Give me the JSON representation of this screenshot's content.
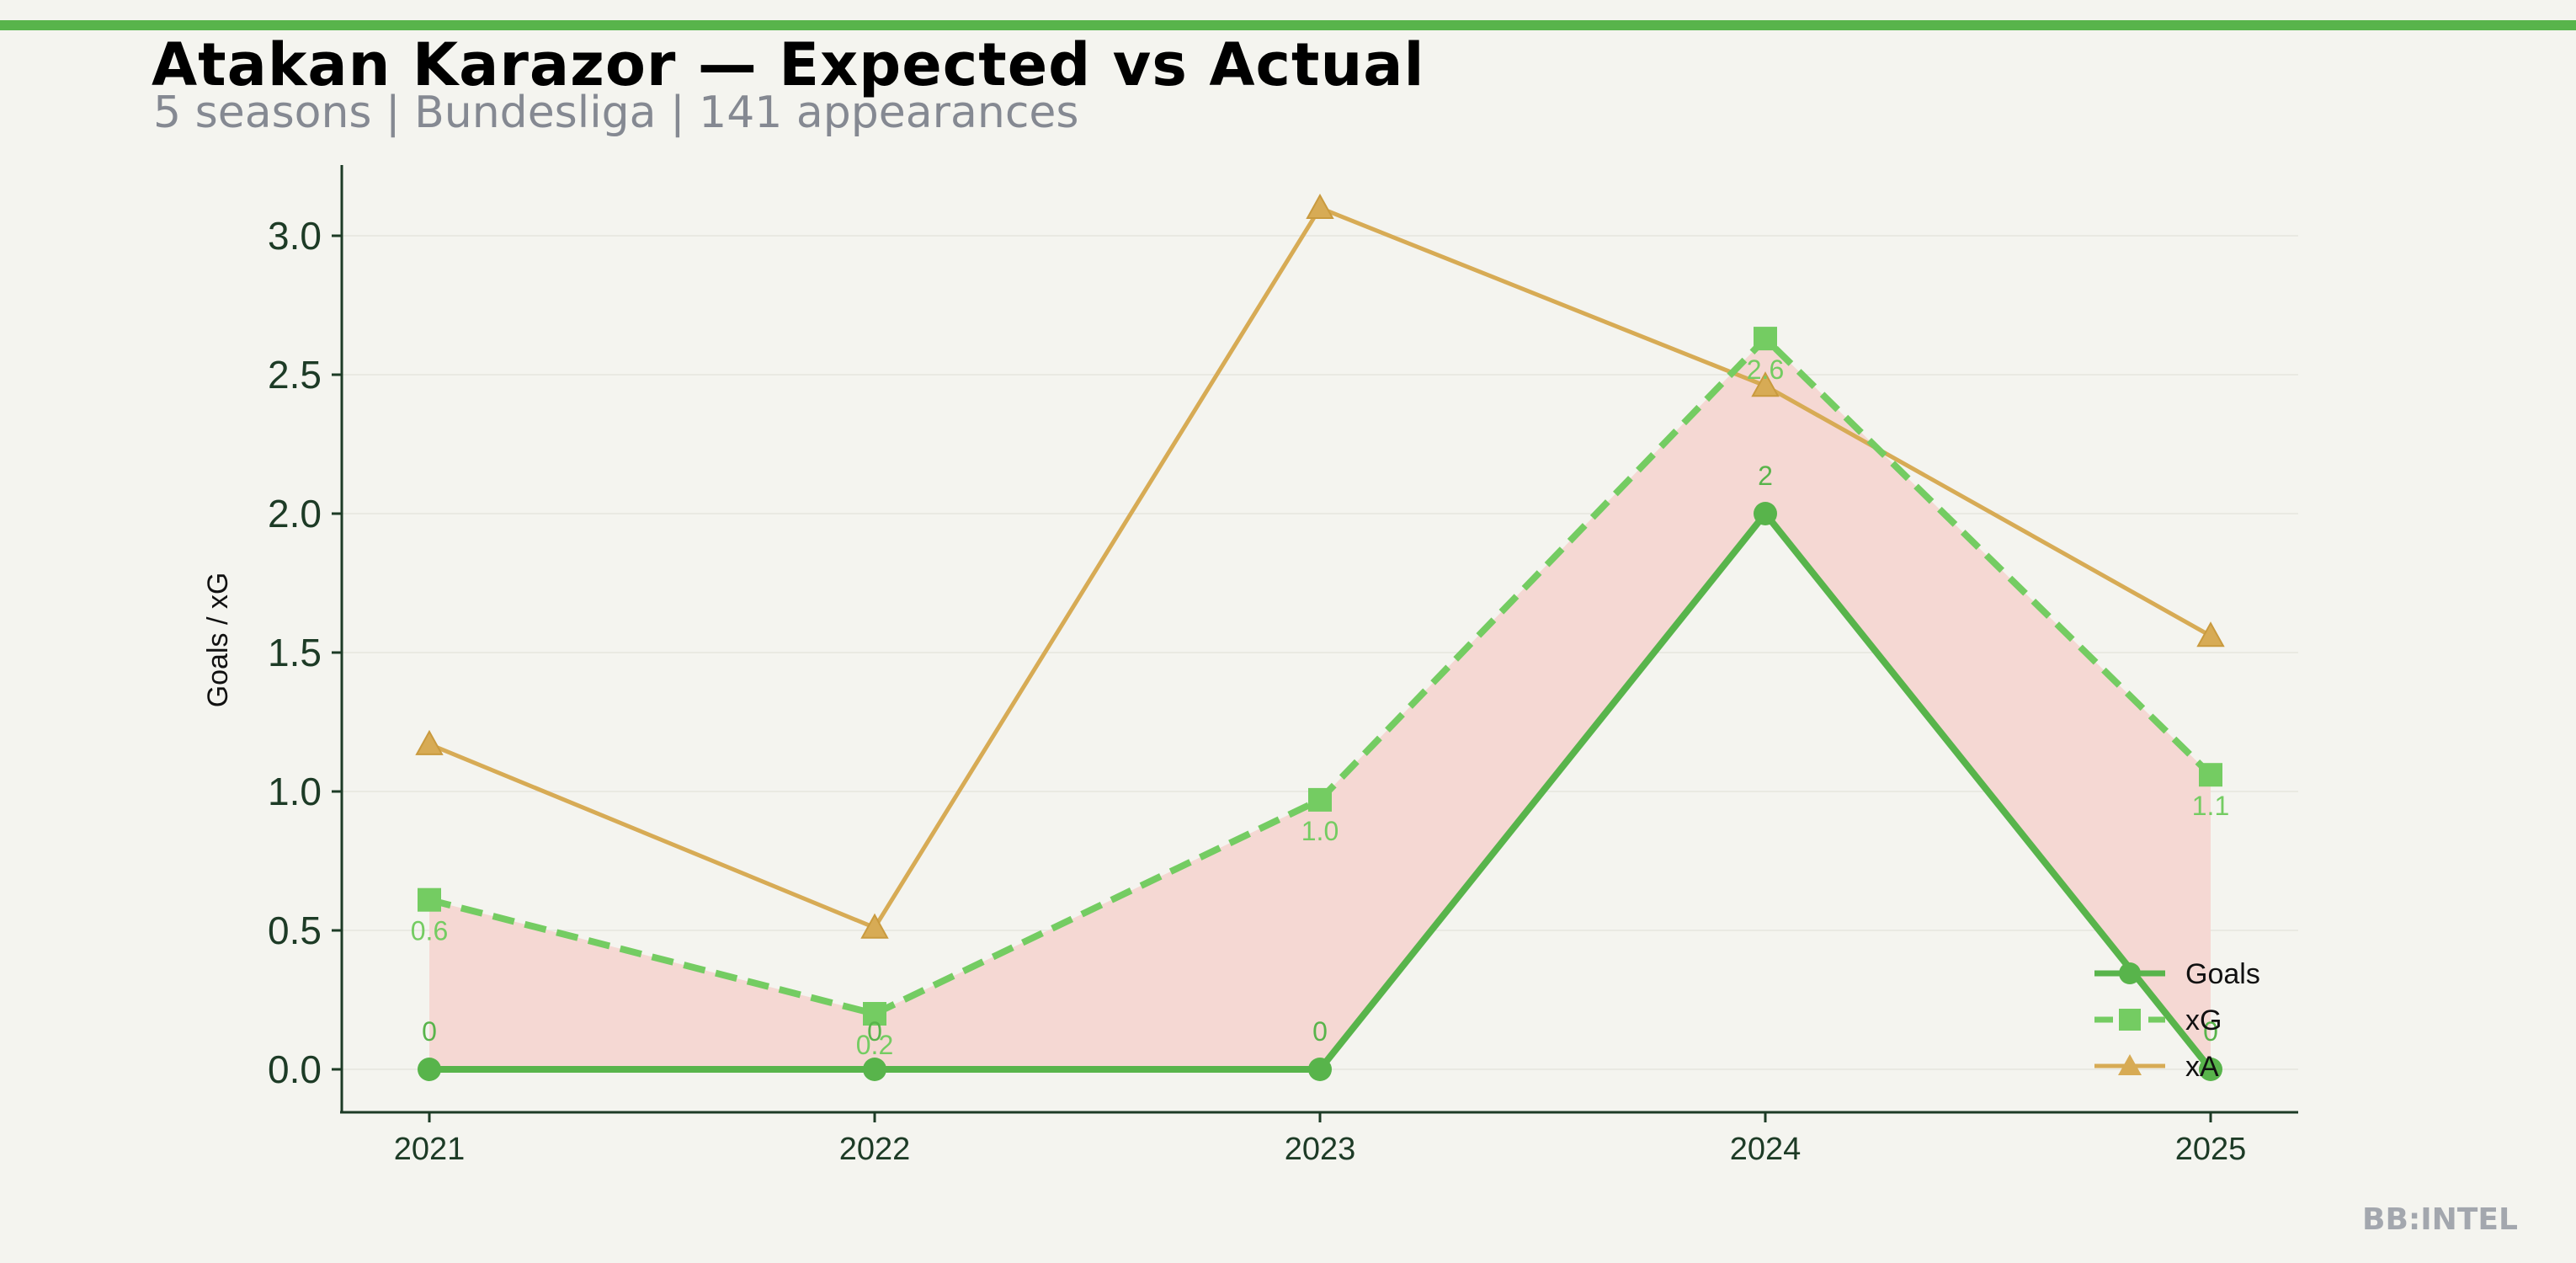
{
  "title": "Atakan Karazor — Expected vs Actual",
  "subtitle": "5 seasons | Bundesliga | 141 appearances",
  "brand": "BB:INTEL",
  "colors": {
    "goals": "#58b44b",
    "xg": "#74cc62",
    "xa": "#d7ab55",
    "fill": "#f5d8d3",
    "axis": "#1d3b26",
    "background": "#f4f4ef"
  },
  "chart_data": {
    "type": "line",
    "ylabel": "Goals / xG",
    "xlabel": "",
    "x": [
      "2021",
      "2022",
      "2023",
      "2024",
      "2025"
    ],
    "ylim": [
      -0.15,
      3.25
    ],
    "yticks": [
      "0.0",
      "0.5",
      "1.0",
      "1.5",
      "2.0",
      "2.5",
      "3.0"
    ],
    "grid": true,
    "legend": "lower-right",
    "series": [
      {
        "name": "Goals",
        "values": [
          0,
          0,
          0,
          2,
          0
        ],
        "labels": [
          "0",
          "0",
          "0",
          "2",
          "0"
        ],
        "marker": "circle-icon",
        "style": "solid"
      },
      {
        "name": "xG",
        "values": [
          0.61,
          0.2,
          0.97,
          2.63,
          1.06
        ],
        "labels": [
          "0.6",
          "0.2",
          "1.0",
          "2.6",
          "1.1"
        ],
        "marker": "square-icon",
        "style": "dashed"
      },
      {
        "name": "xA",
        "values": [
          1.17,
          0.51,
          3.1,
          2.46,
          1.56
        ],
        "marker": "triangle-icon",
        "style": "solid"
      }
    ],
    "shaded_region": "between Goals and xG"
  }
}
